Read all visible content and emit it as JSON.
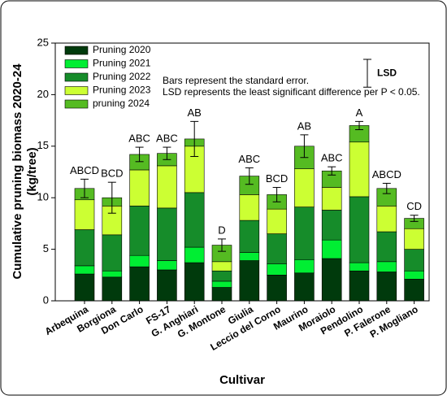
{
  "chart_data": {
    "type": "stacked-bar",
    "ylabel": [
      "Cumulative pruning biomass 2020-24",
      "(kg/tree)"
    ],
    "xlabel": "Cultivar",
    "categories": [
      "Arbequina",
      "Borgiona",
      "Don Carlo",
      "FS-17",
      "G. Anghiari",
      "G. Montone",
      "Giulia",
      "Leccio del Corno",
      "Maurino",
      "Moraiolo",
      "Pendolino",
      "P. Falerone",
      "P. Mogliano"
    ],
    "series": [
      {
        "name": "Pruning 2020",
        "color": "#003a0c",
        "values": [
          2.6,
          2.3,
          3.3,
          3.0,
          3.7,
          1.3,
          3.9,
          2.5,
          2.7,
          4.1,
          2.9,
          2.8,
          2.1
        ]
      },
      {
        "name": "Pruning 2021",
        "color": "#00ee33",
        "values": [
          0.8,
          0.6,
          1.1,
          0.9,
          1.5,
          0.6,
          0.8,
          1.1,
          1.3,
          1.8,
          0.8,
          1.0,
          0.8
        ]
      },
      {
        "name": "Pruning 2022",
        "color": "#168c2a",
        "values": [
          3.5,
          3.5,
          4.8,
          5.1,
          5.3,
          1.0,
          3.1,
          2.9,
          5.1,
          2.9,
          6.4,
          2.9,
          2.1
        ]
      },
      {
        "name": "Pruning 2023",
        "color": "#ccff33",
        "values": [
          2.9,
          2.8,
          3.5,
          4.1,
          4.5,
          0.9,
          2.5,
          2.4,
          3.7,
          2.2,
          5.3,
          2.5,
          2.0
        ]
      },
      {
        "name": "pruning 2024",
        "color": "#55bb22",
        "values": [
          1.1,
          0.8,
          1.5,
          1.2,
          0.7,
          1.6,
          1.8,
          1.4,
          2.2,
          1.6,
          1.6,
          1.7,
          1.0
        ]
      }
    ],
    "errors": [
      0.9,
      1.5,
      0.7,
      0.6,
      1.7,
      0.6,
      0.8,
      0.7,
      1.1,
      0.4,
      0.4,
      0.5,
      0.3
    ],
    "letters": [
      "ABCD",
      "BCD",
      "ABC",
      "ABC",
      "AB",
      "D",
      "ABC",
      "BCD",
      "AB",
      "ABC",
      "A",
      "ABCD",
      "CD"
    ],
    "lsd": {
      "label": "LSD",
      "value": 2.7
    },
    "annotations": [
      "Bars represent the standard error.",
      "LSD represents the least significant difference per P < 0.05."
    ],
    "ylim": [
      0,
      25
    ],
    "yticks": [
      0,
      5,
      10,
      15,
      20,
      25
    ]
  }
}
